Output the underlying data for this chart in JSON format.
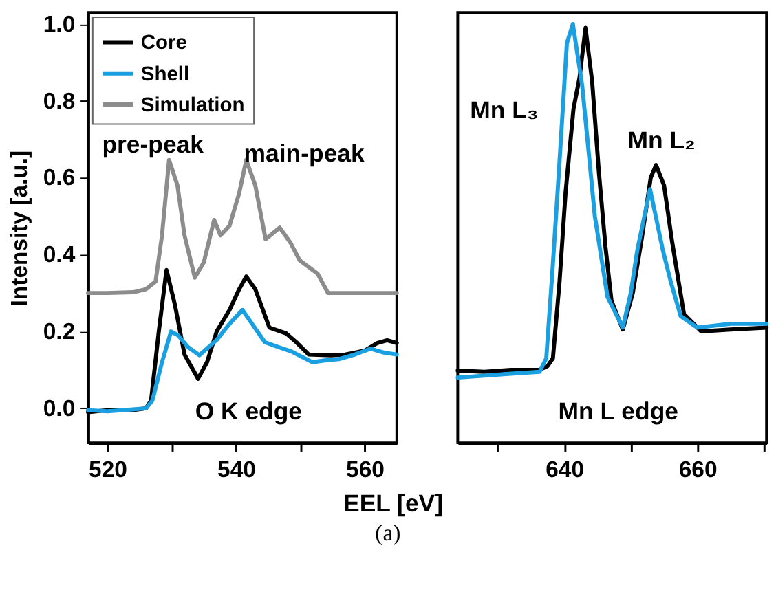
{
  "chart_data": [
    {
      "type": "line",
      "ylabel": "Intensity [a.u.]",
      "xlabel": "EEL [eV]",
      "xlim": [
        517,
        565
      ],
      "xticks": [
        520,
        {
          "value": 530,
          "label": null
        },
        540,
        {
          "value": 550,
          "label": null
        },
        560
      ],
      "ylim": [
        -0.09,
        1.03
      ],
      "yticks": [
        {
          "value": 0,
          "label": "0.0"
        },
        0.2,
        0.4,
        0.6,
        0.8,
        {
          "value": 1,
          "label": "1.0"
        }
      ],
      "grid": false,
      "legend": "top left",
      "line_style": "solid",
      "marker": "none",
      "annotations": [
        "pre-peak",
        "main-peak",
        "O K edge",
        "(a)"
      ],
      "series": [
        {
          "name": "Core",
          "color": "#000000",
          "x": [
            517,
            520,
            524,
            526,
            526.8,
            528,
            529.2,
            530.5,
            532,
            534.1,
            535.5,
            537,
            539,
            540.5,
            541.6,
            543,
            545.2,
            547.8,
            549.5,
            551.3,
            554.8,
            557,
            560,
            562,
            563.5,
            565
          ],
          "values": [
            -0.01,
            -0.005,
            -0.005,
            0.0,
            0.02,
            0.2,
            0.36,
            0.27,
            0.14,
            0.077,
            0.12,
            0.2,
            0.256,
            0.31,
            0.343,
            0.31,
            0.21,
            0.195,
            0.17,
            0.14,
            0.138,
            0.14,
            0.15,
            0.17,
            0.177,
            0.17
          ]
        },
        {
          "name": "Shell",
          "color": "#1a9fe0",
          "x": [
            517,
            520,
            524,
            526,
            527,
            528.5,
            529.9,
            531,
            532.5,
            534.3,
            537,
            539,
            541,
            542.5,
            544.5,
            546.5,
            548.6,
            551.9,
            554,
            556,
            558.5,
            560.9,
            563,
            565
          ],
          "values": [
            -0.005,
            -0.008,
            -0.003,
            0.0,
            0.02,
            0.12,
            0.2,
            0.19,
            0.16,
            0.138,
            0.178,
            0.22,
            0.256,
            0.22,
            0.172,
            0.16,
            0.148,
            0.12,
            0.125,
            0.128,
            0.14,
            0.155,
            0.145,
            0.14
          ]
        },
        {
          "name": "Simulation",
          "color": "#8c8c8c",
          "x": [
            517,
            520,
            524,
            526,
            527.5,
            528.5,
            529.6,
            530.9,
            532,
            533.6,
            535,
            536.6,
            537.6,
            539,
            540.5,
            541.6,
            543,
            544.6,
            546.8,
            548.5,
            549.9,
            552.7,
            554.3,
            558,
            565
          ],
          "values": [
            0.3,
            0.3,
            0.302,
            0.31,
            0.33,
            0.45,
            0.646,
            0.58,
            0.45,
            0.34,
            0.38,
            0.49,
            0.45,
            0.475,
            0.56,
            0.646,
            0.58,
            0.44,
            0.47,
            0.43,
            0.385,
            0.35,
            0.3,
            0.3,
            0.3
          ]
        }
      ]
    },
    {
      "type": "line",
      "xlim": [
        624,
        670.4
      ],
      "xticks": [
        {
          "value": 630,
          "label": null
        },
        640,
        {
          "value": 650,
          "label": null
        },
        660,
        {
          "value": 670,
          "label": null
        }
      ],
      "ylim": [
        -0.09,
        1.03
      ],
      "tick_labels": "x",
      "grid": false,
      "legend": false,
      "line_style": "solid",
      "marker": "none",
      "annotations": [
        "Mn L₃",
        "Mn L₂",
        "Mn L edge"
      ],
      "series": [
        {
          "name": "Core",
          "color": "#000000",
          "x": [
            624,
            628,
            632,
            636.3,
            637.5,
            638.3,
            639.3,
            640.2,
            641.4,
            642.3,
            643.2,
            644.2,
            645.2,
            646.2,
            647.1,
            648.8,
            650.3,
            651.7,
            653,
            653.8,
            655,
            656.2,
            658,
            660.6,
            665,
            670.4
          ],
          "values": [
            0.098,
            0.095,
            0.1,
            0.1,
            0.11,
            0.13,
            0.33,
            0.56,
            0.78,
            0.86,
            0.99,
            0.85,
            0.616,
            0.42,
            0.28,
            0.205,
            0.3,
            0.447,
            0.6,
            0.633,
            0.58,
            0.435,
            0.245,
            0.2,
            0.205,
            0.21
          ]
        },
        {
          "name": "Shell",
          "color": "#1a9fe0",
          "x": [
            624,
            628,
            632,
            636.3,
            637.3,
            638.2,
            639.2,
            640.4,
            641.3,
            642.7,
            643.6,
            644.6,
            646.5,
            648.8,
            650,
            651,
            652.9,
            654.8,
            656,
            657.5,
            660,
            665,
            670.4
          ],
          "values": [
            0.08,
            0.085,
            0.09,
            0.095,
            0.13,
            0.35,
            0.615,
            0.95,
            1.0,
            0.84,
            0.68,
            0.5,
            0.29,
            0.21,
            0.3,
            0.413,
            0.57,
            0.413,
            0.33,
            0.24,
            0.21,
            0.22,
            0.22
          ]
        }
      ]
    }
  ]
}
